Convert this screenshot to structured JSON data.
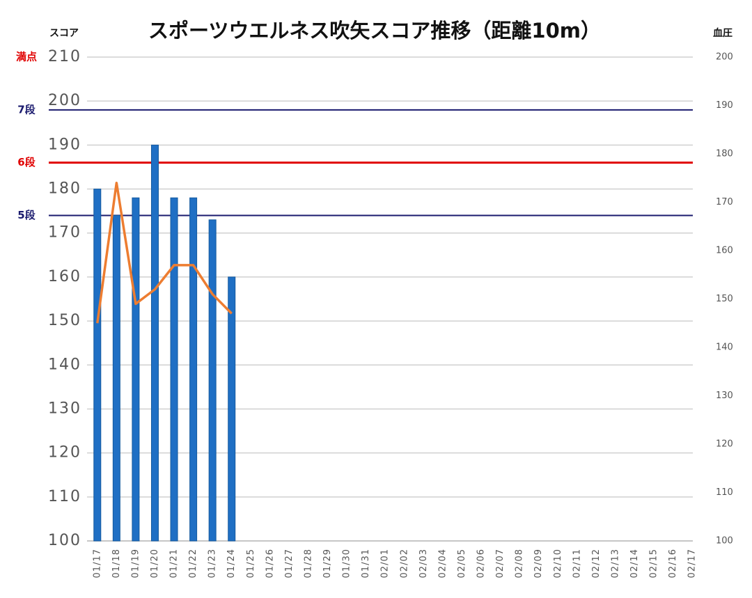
{
  "chart_data": {
    "type": "bar",
    "title": "スポーツウエルネス吹矢スコア推移（距離10m）",
    "y_label": "スコア",
    "y2_label": "血圧",
    "categories": [
      "01/17",
      "01/18",
      "01/19",
      "01/20",
      "01/21",
      "01/22",
      "01/23",
      "01/24",
      "01/25",
      "01/26",
      "01/27",
      "01/28",
      "01/29",
      "01/30",
      "01/31",
      "02/01",
      "02/02",
      "02/03",
      "02/04",
      "02/05",
      "02/06",
      "02/07",
      "02/08",
      "02/09",
      "02/10",
      "02/11",
      "02/12",
      "02/13",
      "02/14",
      "02/15",
      "02/16",
      "02/17"
    ],
    "series": [
      {
        "type": "bar",
        "color": "#1f6fc4",
        "values": [
          180,
          174,
          178,
          190,
          178,
          178,
          173,
          160,
          null,
          null,
          null,
          null,
          null,
          null,
          null,
          null,
          null,
          null,
          null,
          null,
          null,
          null,
          null,
          null,
          null,
          null,
          null,
          null,
          null,
          null,
          null,
          null
        ]
      },
      {
        "type": "line",
        "axis": "y2",
        "color": "#ed7d31",
        "values": [
          145,
          174,
          149,
          152,
          157,
          157,
          151,
          147,
          null,
          null,
          null,
          null,
          null,
          null,
          null,
          null,
          null,
          null,
          null,
          null,
          null,
          null,
          null,
          null,
          null,
          null,
          null,
          null,
          null,
          null,
          null,
          null
        ]
      }
    ],
    "ylim": [
      100,
      210
    ],
    "yticks": [
      100,
      110,
      120,
      130,
      140,
      150,
      160,
      170,
      180,
      190,
      200,
      210
    ],
    "y2lim": [
      100,
      200
    ],
    "y2ticks": [
      100,
      110,
      120,
      130,
      140,
      150,
      160,
      170,
      180,
      190,
      200
    ],
    "grid": true,
    "annotations": [
      {
        "label": "満点",
        "value": 210,
        "color": "#e00000",
        "line": false
      },
      {
        "label": "7段",
        "value": 198,
        "color": "#1a1a6e",
        "line": true
      },
      {
        "label": "6段",
        "value": 186,
        "color": "#e00000",
        "line": true
      },
      {
        "label": "5段",
        "value": 174,
        "color": "#1a1a6e",
        "line": true
      }
    ]
  }
}
